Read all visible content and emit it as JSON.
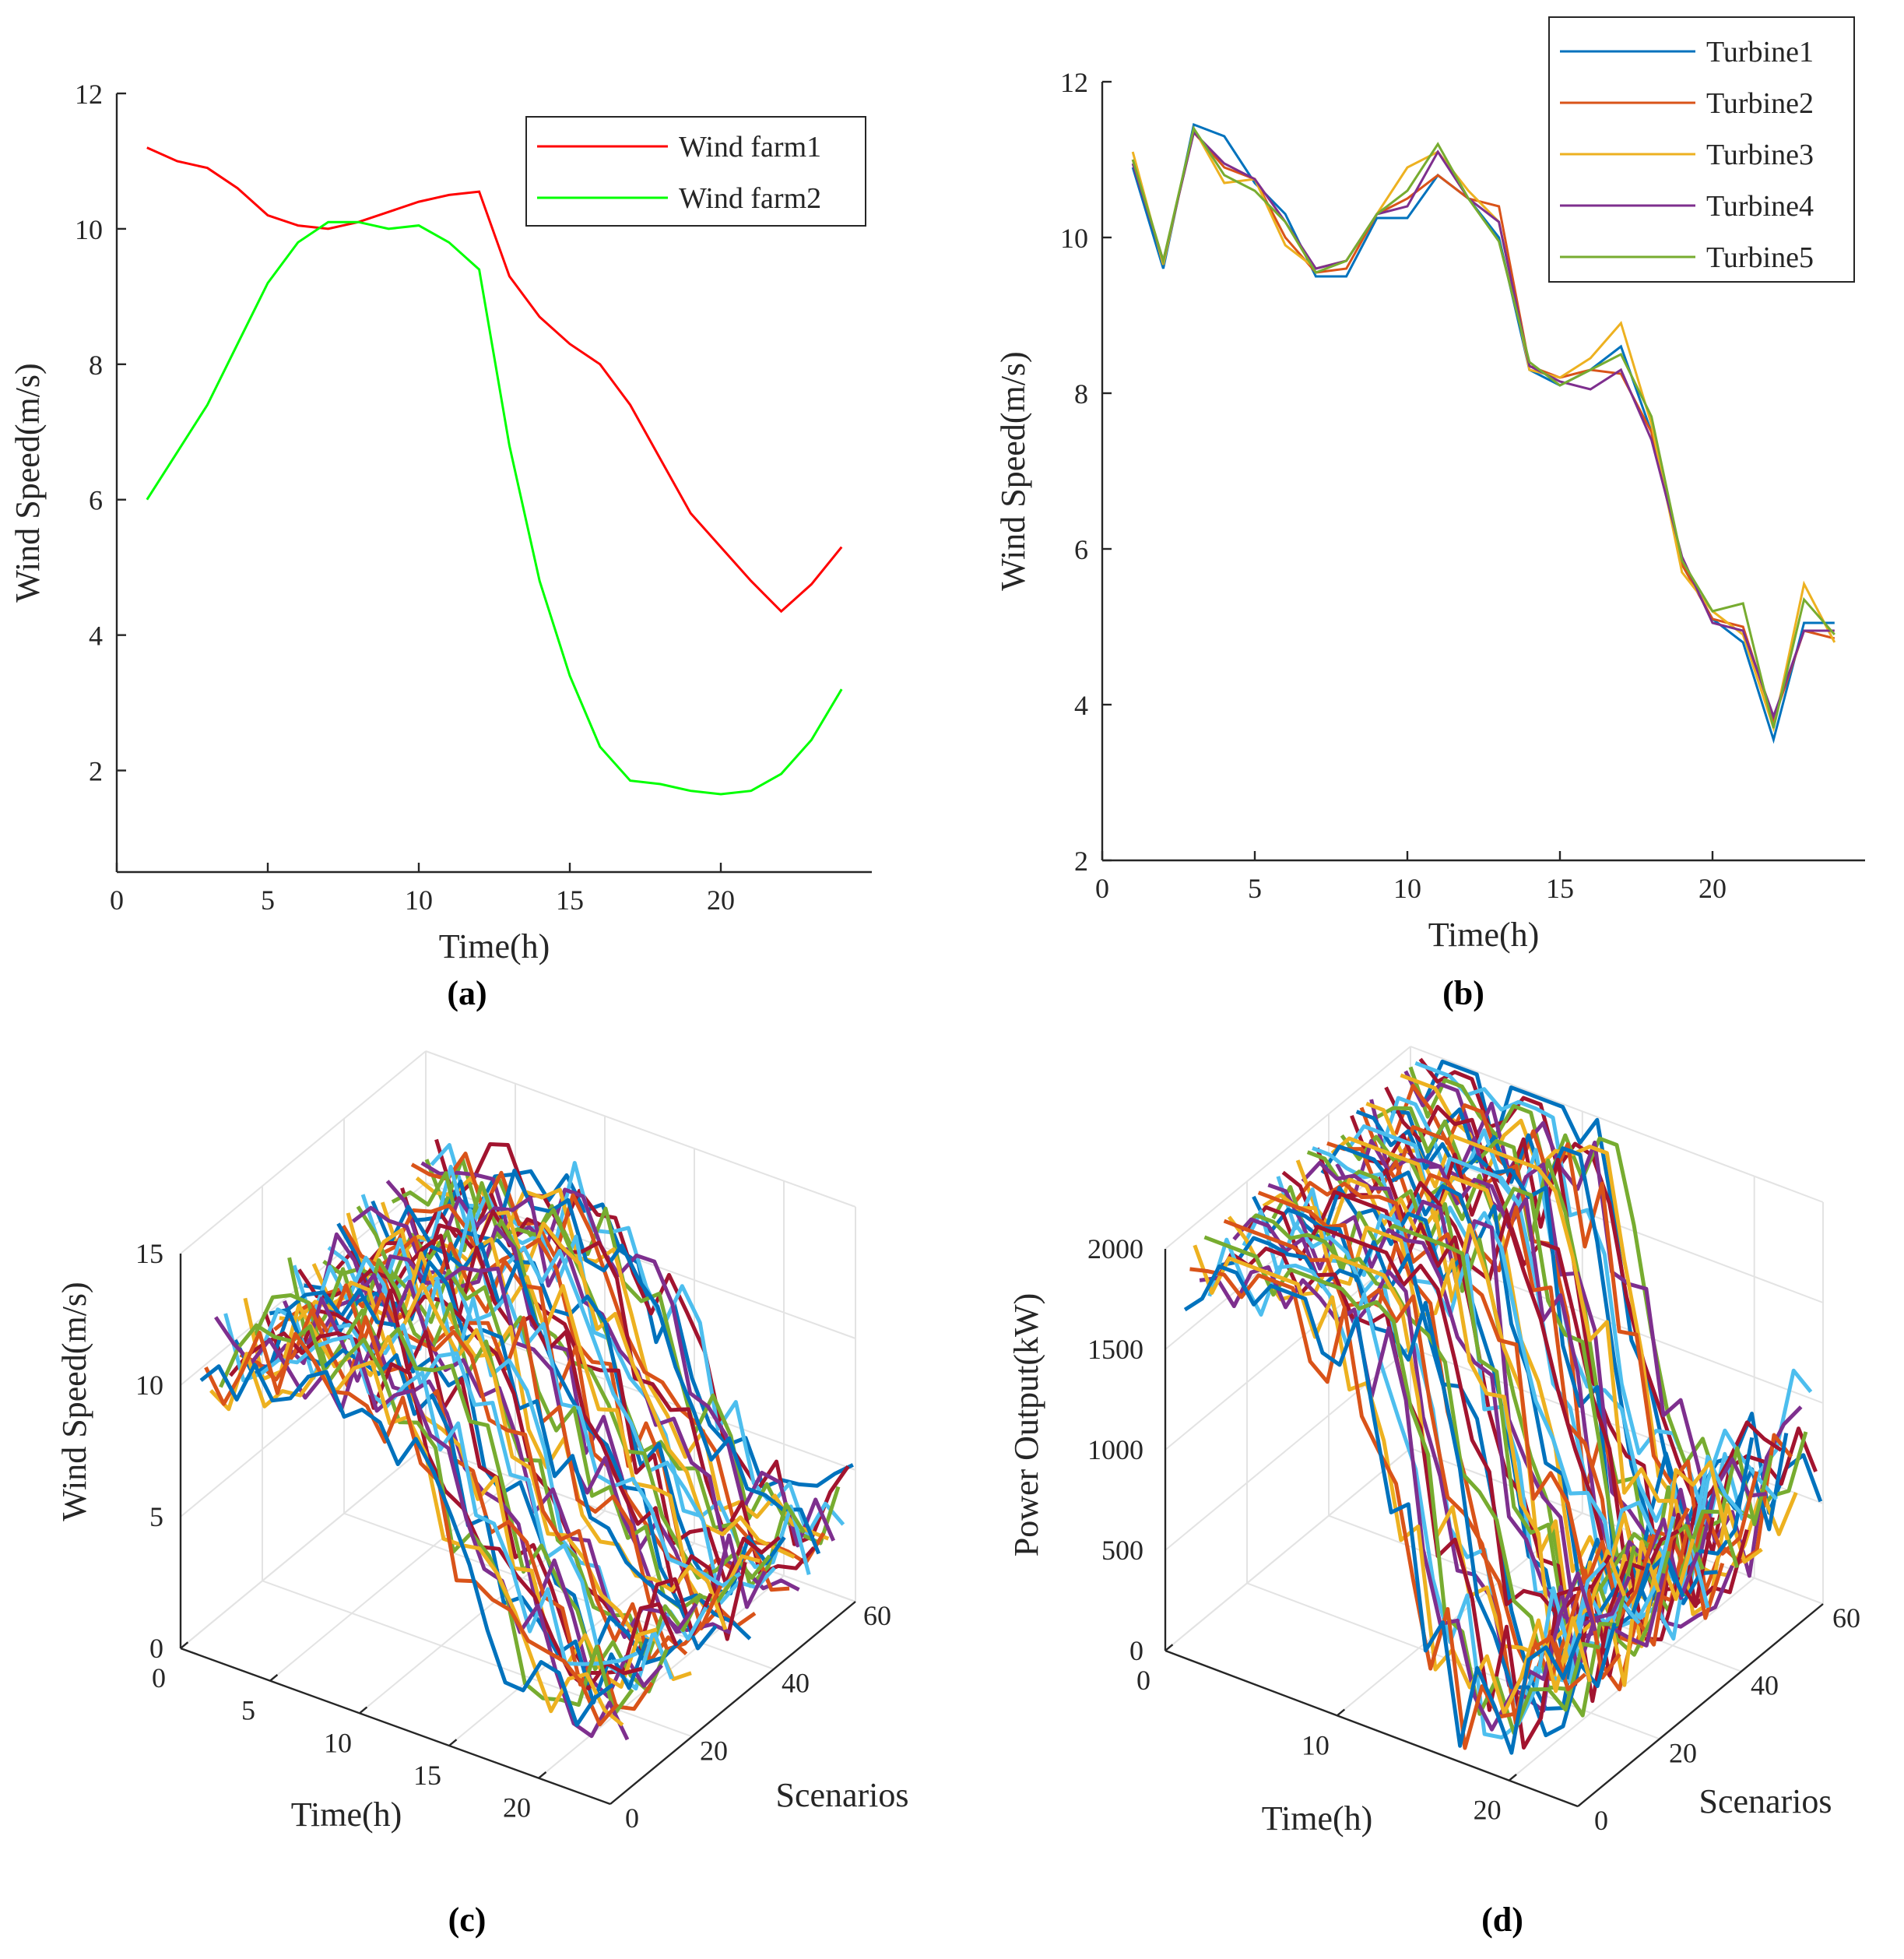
{
  "chart_data": [
    {
      "id": "a",
      "type": "line",
      "caption": "(a)",
      "xlabel": "Time(h)",
      "ylabel": "Wind Speed(m/s)",
      "xlim": [
        0,
        25
      ],
      "ylim": [
        0.5,
        12
      ],
      "xticks": [
        0,
        5,
        10,
        15,
        20
      ],
      "yticks": [
        2,
        4,
        6,
        8,
        10,
        12
      ],
      "x": [
        1,
        2,
        3,
        4,
        5,
        6,
        7,
        8,
        9,
        10,
        11,
        12,
        13,
        14,
        15,
        16,
        17,
        18,
        19,
        20,
        21,
        22,
        23,
        24
      ],
      "series": [
        {
          "name": "Wind farm1",
          "color": "#ff0000",
          "values": [
            11.2,
            11.0,
            10.9,
            10.6,
            10.2,
            10.05,
            10.0,
            10.1,
            10.25,
            10.4,
            10.5,
            10.55,
            9.3,
            8.7,
            8.3,
            8.0,
            7.4,
            6.6,
            5.8,
            5.3,
            4.8,
            4.35,
            4.75,
            5.3
          ]
        },
        {
          "name": "Wind farm2",
          "color": "#00ff00",
          "values": [
            6.0,
            6.7,
            7.4,
            8.3,
            9.2,
            9.8,
            10.1,
            10.1,
            10.0,
            10.05,
            9.8,
            9.4,
            6.8,
            4.8,
            3.4,
            2.35,
            1.85,
            1.8,
            1.7,
            1.65,
            1.7,
            1.95,
            2.45,
            3.2
          ]
        }
      ],
      "legend": "top-right"
    },
    {
      "id": "b",
      "type": "line",
      "caption": "(b)",
      "xlabel": "Time(h)",
      "ylabel": "Wind Speed(m/s)",
      "xlim": [
        0,
        25
      ],
      "ylim": [
        2,
        12
      ],
      "xticks": [
        0,
        5,
        10,
        15,
        20
      ],
      "yticks": [
        2,
        4,
        6,
        8,
        10,
        12
      ],
      "x": [
        1,
        2,
        3,
        4,
        5,
        6,
        7,
        8,
        9,
        10,
        11,
        12,
        13,
        14,
        15,
        16,
        17,
        18,
        19,
        20,
        21,
        22,
        23,
        24
      ],
      "series": [
        {
          "name": "Turbine1",
          "color": "#0072bd",
          "values": [
            10.9,
            9.6,
            11.45,
            11.3,
            10.7,
            10.3,
            9.5,
            9.5,
            10.25,
            10.25,
            10.8,
            10.5,
            10.0,
            8.3,
            8.1,
            8.3,
            8.6,
            7.5,
            5.8,
            5.1,
            4.8,
            3.55,
            5.05,
            5.05
          ]
        },
        {
          "name": "Turbine2",
          "color": "#d95319",
          "values": [
            11.0,
            9.7,
            11.35,
            10.9,
            10.75,
            10.0,
            9.55,
            9.6,
            10.3,
            10.5,
            10.8,
            10.5,
            10.4,
            8.35,
            8.2,
            8.3,
            8.25,
            7.5,
            5.8,
            5.1,
            5.0,
            3.8,
            4.95,
            4.85
          ]
        },
        {
          "name": "Turbine3",
          "color": "#edb120",
          "values": [
            11.1,
            9.65,
            11.4,
            10.7,
            10.75,
            9.9,
            9.6,
            9.7,
            10.3,
            10.9,
            11.1,
            10.6,
            10.2,
            8.3,
            8.2,
            8.45,
            8.9,
            7.6,
            5.7,
            5.2,
            4.9,
            3.7,
            5.55,
            4.8
          ]
        },
        {
          "name": "Turbine4",
          "color": "#7e2f8e",
          "values": [
            10.95,
            9.7,
            11.35,
            10.95,
            10.75,
            10.2,
            9.6,
            9.7,
            10.3,
            10.4,
            11.1,
            10.5,
            10.2,
            8.35,
            8.15,
            8.05,
            8.3,
            7.4,
            5.9,
            5.05,
            4.95,
            3.85,
            4.95,
            4.95
          ]
        },
        {
          "name": "Turbine5",
          "color": "#77ac30",
          "values": [
            11.0,
            9.7,
            11.4,
            10.8,
            10.6,
            10.2,
            9.55,
            9.7,
            10.3,
            10.6,
            11.2,
            10.5,
            9.95,
            8.4,
            8.1,
            8.3,
            8.5,
            7.7,
            5.85,
            5.2,
            5.3,
            3.7,
            5.35,
            4.9
          ]
        }
      ],
      "legend": "top-right"
    },
    {
      "id": "c",
      "type": "line3d",
      "caption": "(c)",
      "xlabel": "Time(h)",
      "ylabel": "Scenarios",
      "zlabel": "Wind Speed(m/s)",
      "xlim": [
        0,
        24
      ],
      "ylim": [
        0,
        60
      ],
      "zlim": [
        0,
        15
      ],
      "xticks": [
        0,
        5,
        10,
        15,
        20
      ],
      "yticks": [
        0,
        20,
        40,
        60
      ],
      "zticks": [
        0,
        5,
        10,
        15
      ],
      "scenario_count": 50,
      "base_profile": [
        11.0,
        10.7,
        10.9,
        11.2,
        11.5,
        11.8,
        11.6,
        11.9,
        12.0,
        11.8,
        11.5,
        11.0,
        10.0,
        8.8,
        7.6,
        6.5,
        5.5,
        4.6,
        3.8,
        3.2,
        2.9,
        3.0,
        3.4,
        3.8
      ],
      "noise_amplitude": 1.6,
      "palette": [
        "#0072bd",
        "#d95319",
        "#edb120",
        "#7e2f8e",
        "#77ac30",
        "#4dbeee",
        "#a2142f"
      ]
    },
    {
      "id": "d",
      "type": "line3d",
      "caption": "(d)",
      "xlabel": "Time(h)",
      "ylabel": "Scenarios",
      "zlabel": "Power Output(kW)",
      "xlim": [
        0,
        24
      ],
      "ylim": [
        0,
        60
      ],
      "zlim": [
        0,
        2000
      ],
      "xticks": [
        0,
        10,
        20
      ],
      "yticks": [
        0,
        20,
        40,
        60
      ],
      "zticks": [
        0,
        500,
        1000,
        1500,
        2000
      ],
      "scenario_count": 50,
      "cap": 2000,
      "base_profile": [
        2000,
        2000,
        2000,
        2000,
        2000,
        2000,
        2000,
        2000,
        1950,
        1900,
        1850,
        1700,
        1400,
        1100,
        800,
        550,
        380,
        300,
        320,
        400,
        520,
        640,
        760,
        850
      ],
      "noise_amplitude": 330,
      "palette": [
        "#0072bd",
        "#d95319",
        "#edb120",
        "#7e2f8e",
        "#77ac30",
        "#4dbeee",
        "#a2142f"
      ]
    }
  ]
}
